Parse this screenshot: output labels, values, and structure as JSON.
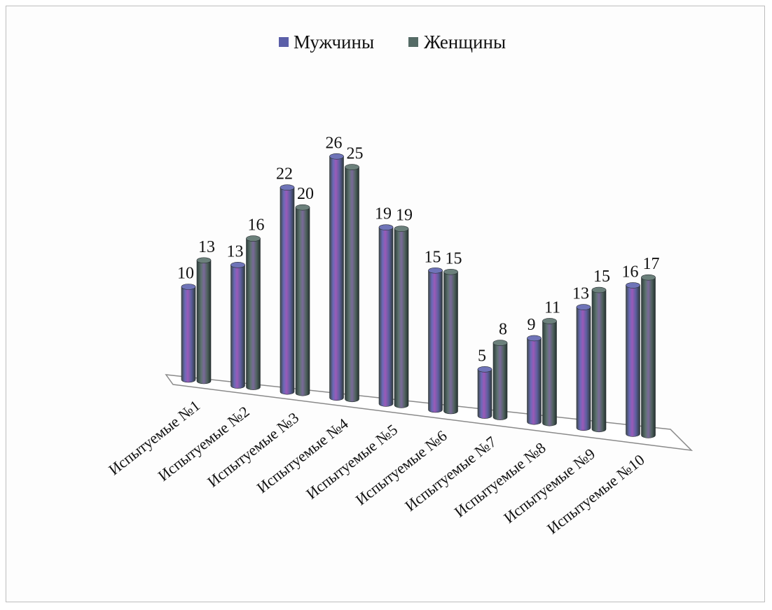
{
  "chart_data": {
    "type": "bar",
    "style": "3d-cylinder",
    "categories": [
      "Испытуемые №1",
      "Испытуемые №2",
      "Испытуемые №3",
      "Испытуемые №4",
      "Испытуемые №5",
      "Испытуемые №6",
      "Испытуемые №7",
      "Испытуемые №8",
      "Испытуемые №9",
      "Испытуемые №10"
    ],
    "series": [
      {
        "name": "Мужчины",
        "values": [
          10,
          13,
          22,
          26,
          19,
          15,
          5,
          9,
          13,
          16
        ],
        "color": "#5b5fa8"
      },
      {
        "name": "Женщины",
        "values": [
          13,
          16,
          20,
          25,
          19,
          15,
          8,
          11,
          15,
          17
        ],
        "color": "#556b66"
      }
    ],
    "legend": {
      "position": "top-center"
    },
    "grid": false,
    "ylim": [
      0,
      26
    ]
  }
}
